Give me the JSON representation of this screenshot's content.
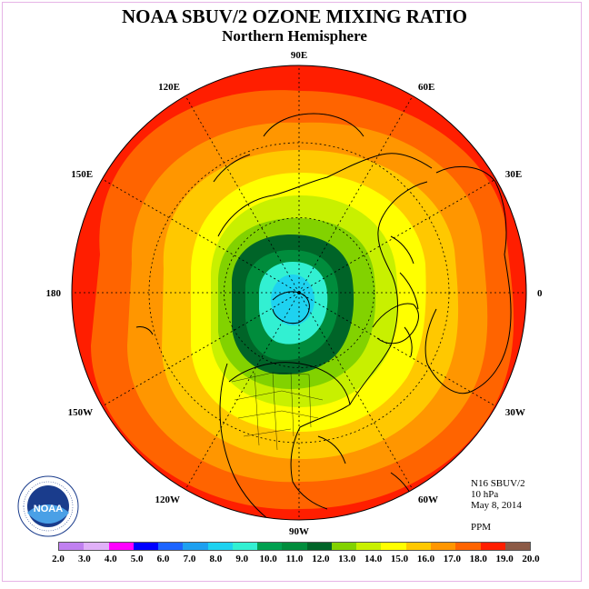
{
  "header": {
    "title": "NOAA SBUV/2 OZONE MIXING RATIO",
    "subtitle": "Northern Hemisphere"
  },
  "info": {
    "satellite": "N16 SBUV/2",
    "pressure": "10 hPa",
    "date": "May 8, 2014",
    "units": "PPM"
  },
  "longitude_labels": [
    {
      "text": "90E",
      "lon": 90
    },
    {
      "text": "60E",
      "lon": 60
    },
    {
      "text": "30E",
      "lon": 30
    },
    {
      "text": "0",
      "lon": 0
    },
    {
      "text": "30W",
      "lon": -30
    },
    {
      "text": "60W",
      "lon": -60
    },
    {
      "text": "90W",
      "lon": -90
    },
    {
      "text": "120W",
      "lon": -120
    },
    {
      "text": "150W",
      "lon": -150
    },
    {
      "text": "180",
      "lon": 180
    },
    {
      "text": "150E",
      "lon": 150
    },
    {
      "text": "120E",
      "lon": 120
    }
  ],
  "colorbar": {
    "ticks": [
      "2.0",
      "3.0",
      "4.0",
      "5.0",
      "6.0",
      "7.0",
      "8.0",
      "9.0",
      "10.0",
      "11.0",
      "12.0",
      "13.0",
      "14.0",
      "15.0",
      "16.0",
      "17.0",
      "18.0",
      "19.0",
      "20.0"
    ],
    "colors": [
      "#c080f0",
      "#e0b0f8",
      "#ff00ff",
      "#0000ff",
      "#1c64ff",
      "#1ea0f0",
      "#1ed2f0",
      "#32f0d2",
      "#00a050",
      "#008c3c",
      "#006428",
      "#82d200",
      "#c8f000",
      "#ffff00",
      "#ffc800",
      "#ff9600",
      "#ff6400",
      "#ff1e00",
      "#8c5a46"
    ]
  },
  "logo": {
    "text": "NOAA",
    "ring_text": "NATIONAL OCEANIC AND ATMOSPHERIC ADMINISTRATION · U.S. DEPARTMENT OF COMMERCE"
  },
  "map_colors": {
    "background_ring": "#ff1e00",
    "bands": [
      "#ff6400",
      "#ff9600",
      "#ffc800",
      "#ffff00",
      "#c8f000",
      "#82d200",
      "#006428",
      "#008c3c",
      "#32f0d2",
      "#1ed2f0"
    ]
  }
}
